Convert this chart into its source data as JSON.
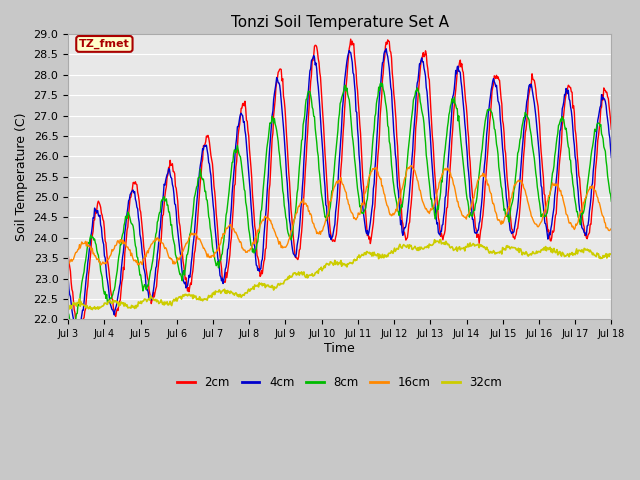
{
  "title": "Tonzi Soil Temperature Set A",
  "xlabel": "Time",
  "ylabel": "Soil Temperature (C)",
  "annotation": "TZ_fmet",
  "ylim": [
    22.0,
    29.0
  ],
  "yticks": [
    22.0,
    22.5,
    23.0,
    23.5,
    24.0,
    24.5,
    25.0,
    25.5,
    26.0,
    26.5,
    27.0,
    27.5,
    28.0,
    28.5,
    29.0
  ],
  "xtick_labels": [
    "Jul 3",
    "Jul 4",
    "Jul 5",
    "Jul 6",
    "Jul 7",
    "Jul 8",
    "Jul 9",
    "Jul 10",
    "Jul 11",
    "Jul 12",
    "Jul 13",
    "Jul 14",
    "Jul 15",
    "Jul 16",
    "Jul 17",
    "Jul 18"
  ],
  "colors": {
    "2cm": "#ff0000",
    "4cm": "#0000cc",
    "8cm": "#00bb00",
    "16cm": "#ff8800",
    "32cm": "#cccc00"
  },
  "legend_labels": [
    "2cm",
    "4cm",
    "8cm",
    "16cm",
    "32cm"
  ],
  "fig_bg": "#c8c8c8",
  "plot_bg": "#e8e8e8",
  "annotation_bg": "#ffffcc",
  "annotation_border": "#aa0000",
  "annotation_text_color": "#aa0000",
  "grid_color": "#ffffff"
}
